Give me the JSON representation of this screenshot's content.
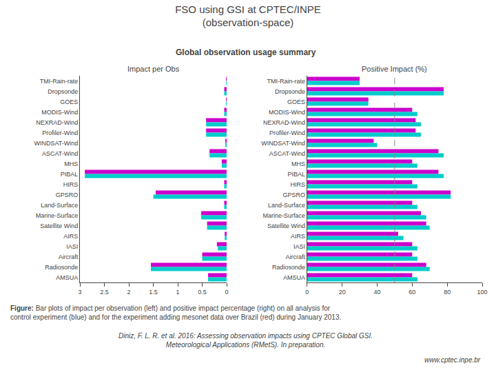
{
  "title": "FSO using GSI at CPTEC/INPE\n(observation-space)",
  "subtitle": "Global observation usage summary",
  "annotations": [
    "Figure: Bar plots of impact per observation (left) and positive impact percentage (right) on all analysis for\ncontrol experiment (blue) and for the experiment adding mesonet data over Brazil (red) during January 2013.",
    "Diniz, F. L. R. et al. 2016: Assessing observation impacts using CPTEC Global GSI.\nMeteorological Applications (RMetS). In preparation.",
    "www.cptec.inpe.br"
  ],
  "chart_data": [
    {
      "type": "bar",
      "orientation": "horizontal",
      "title": "Impact per Obs",
      "categories": [
        "TMI-Rain-rate",
        "Dropsonde",
        "GOES",
        "MODIS-Wind",
        "NEXRAD-Wind",
        "Profiler-Wind",
        "WINDSAT-Wind",
        "ASCAT-Wind",
        "MHS",
        "PIBAL",
        "HIRS",
        "GPSRO",
        "Land-Surface",
        "Marine-Surface",
        "Satellite Wind",
        "AIRS",
        "IASI",
        "Aircraft",
        "Radiosonde",
        "AMSUA"
      ],
      "series": [
        {
          "color": "#00CCCC",
          "values": [
            0.01,
            0.05,
            0.01,
            0.05,
            0.42,
            0.42,
            0.02,
            0.35,
            0.1,
            2.9,
            0.05,
            1.5,
            0.05,
            0.52,
            0.4,
            0.04,
            0.18,
            0.5,
            1.55,
            0.38
          ]
        },
        {
          "color": "#CC00CC",
          "values": [
            0.01,
            0.05,
            0.01,
            0.05,
            0.42,
            0.42,
            0.02,
            0.35,
            0.1,
            2.9,
            0.05,
            1.45,
            0.05,
            0.52,
            0.4,
            0.04,
            0.2,
            0.5,
            1.55,
            0.38
          ]
        }
      ],
      "xlim": [
        3,
        0
      ],
      "xticks": [
        3,
        2.5,
        2,
        1.5,
        1,
        0.5,
        0
      ],
      "grid": false
    },
    {
      "type": "bar",
      "orientation": "horizontal",
      "title": "Positive Impact (%)",
      "categories": [
        "TMI-Rain-rate",
        "Dropsonde",
        "GOES",
        "MODIS-Wind",
        "NEXRAD-Wind",
        "Profiler-Wind",
        "WINDSAT-Wind",
        "ASCAT-Wind",
        "MHS",
        "PIBAL",
        "HIRS",
        "GPSRO",
        "Land-Surface",
        "Marine-Surface",
        "Satellite Wind",
        "AIRS",
        "IASI",
        "Aircraft",
        "Radiosonde",
        "AMSUA"
      ],
      "series": [
        {
          "color": "#00CCCC",
          "values": [
            30,
            78,
            35,
            63,
            65,
            65,
            40,
            78,
            63,
            78,
            63,
            82,
            63,
            68,
            70,
            55,
            63,
            63,
            70,
            63
          ]
        },
        {
          "color": "#CC00CC",
          "values": [
            30,
            78,
            35,
            60,
            62,
            62,
            38,
            75,
            60,
            75,
            60,
            82,
            60,
            65,
            68,
            52,
            60,
            60,
            68,
            60
          ]
        }
      ],
      "xlim": [
        0,
        100
      ],
      "xticks": [
        0,
        20,
        40,
        60,
        80,
        100
      ],
      "vline": 50,
      "grid": false
    }
  ]
}
